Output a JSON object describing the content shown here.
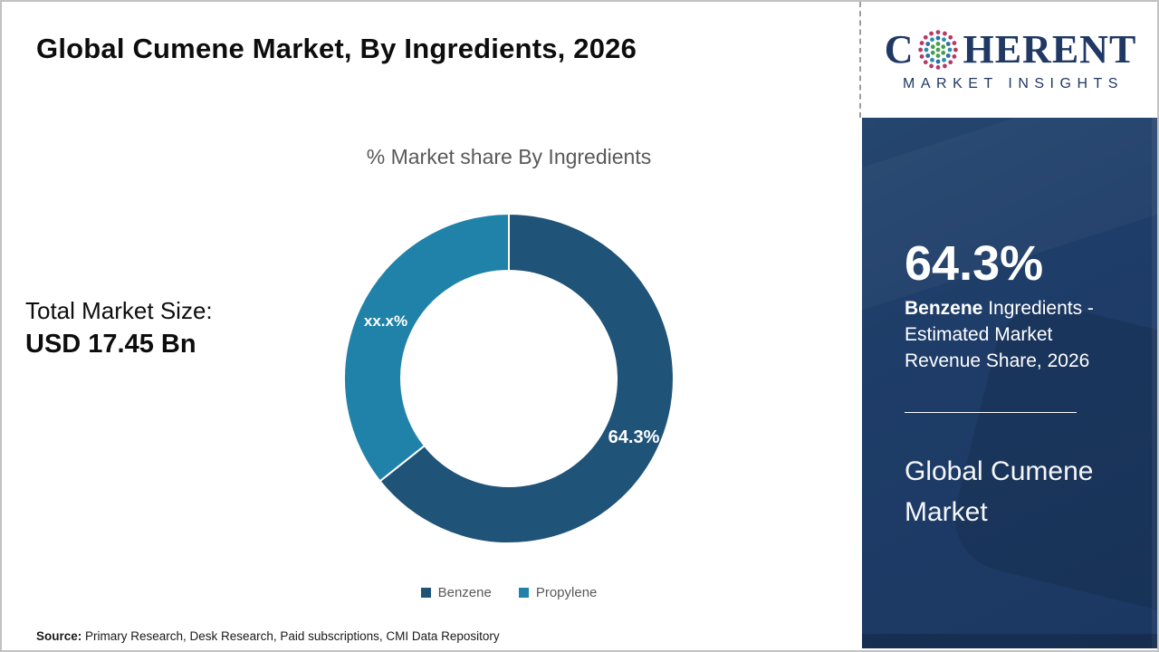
{
  "header": {
    "title": "Global Cumene Market, By Ingredients, 2026"
  },
  "logo": {
    "word_start": "C",
    "word_end": "HERENT",
    "tagline": "MARKET INSIGHTS",
    "brand_color": "#1F3864",
    "globe_icon": "dotted-globe-icon",
    "dot_colors": {
      "inner": "#44A04C",
      "mid": "#2E6DA4",
      "mid_alt": "#2B8FA9",
      "outer": "#B53A66"
    }
  },
  "chart_data": {
    "type": "pie",
    "donut": true,
    "title": "% Market share By Ingredients",
    "labels": [
      "Benzene",
      "Propylene"
    ],
    "values": [
      64.3,
      35.7
    ],
    "value_labels": [
      "64.3%",
      "xx.x%"
    ],
    "colors": [
      "#1F5378",
      "#2182A9"
    ],
    "legend_position": "bottom",
    "start_angle_deg": 0,
    "direction": "clockwise"
  },
  "total_market": {
    "label": "Total Market Size:",
    "value": "USD 17.45 Bn"
  },
  "sidebar": {
    "stat_value": "64.3%",
    "stat_term": "Benzene",
    "stat_desc": " Ingredients - Estimated Market Revenue Share, 2026",
    "market_name": "Global Cumene Market",
    "bg_color": "#1E3D68"
  },
  "source": {
    "label": "Source:",
    "text": " Primary Research, Desk Research, Paid subscriptions, CMI Data Repository"
  }
}
